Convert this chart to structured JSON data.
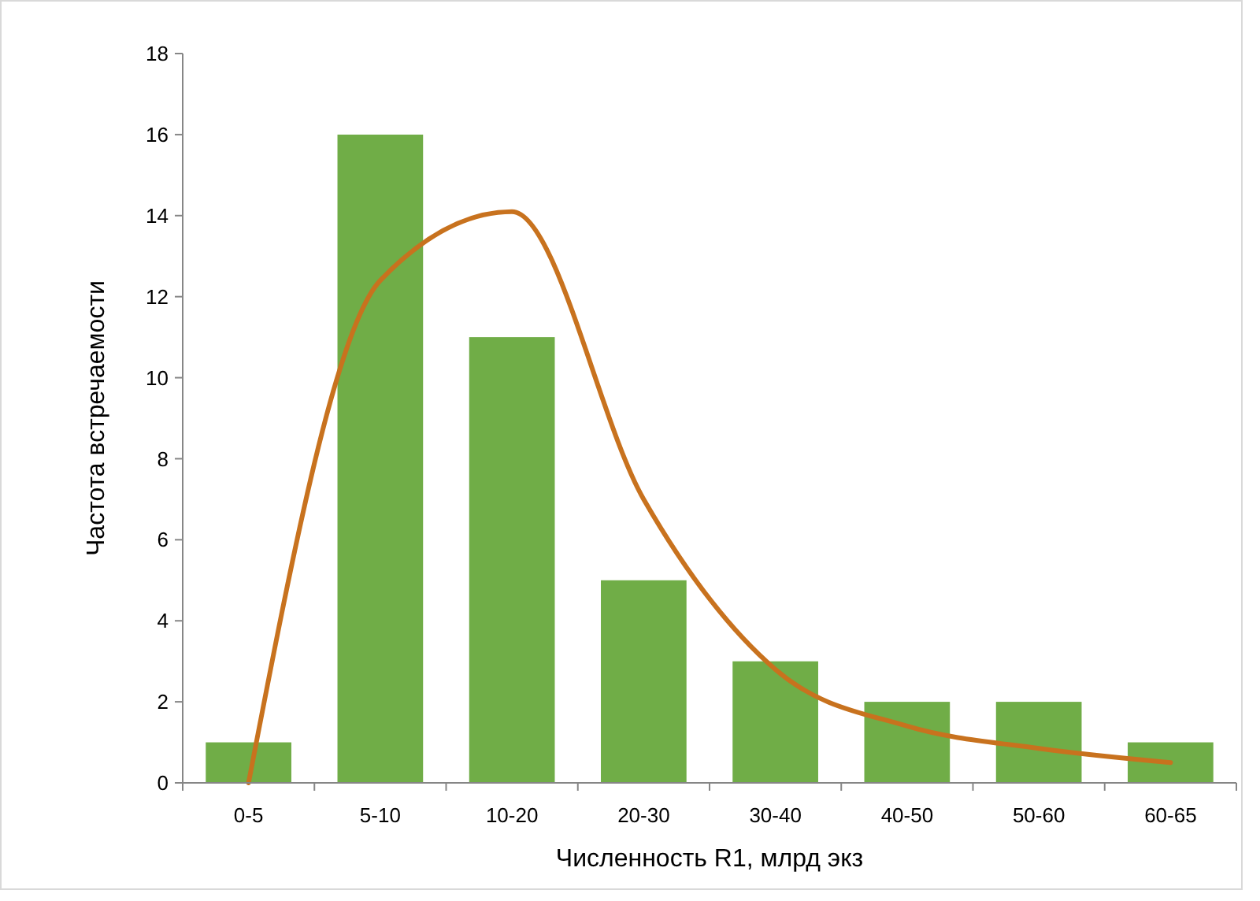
{
  "chart_data": {
    "type": "bar",
    "xlabel": "Численность R1, млрд экз",
    "ylabel": "Частота встречаемости",
    "categories": [
      "0-5",
      "5-10",
      "10-20",
      "20-30",
      "30-40",
      "40-50",
      "50-60",
      "60-65"
    ],
    "series": [
      {
        "color": "#70ad47",
        "values": [
          1,
          16,
          11,
          5,
          3,
          2,
          2,
          1
        ]
      },
      {
        "type": "line",
        "color": "#c8721e",
        "values": [
          0,
          12.4,
          14.1,
          7.0,
          2.8,
          1.4,
          0.85,
          0.5
        ]
      }
    ],
    "ylim": [
      0,
      18
    ],
    "yticks": [
      0,
      2,
      4,
      6,
      8,
      10,
      12,
      14,
      16,
      18
    ],
    "grid": false,
    "marker": "none",
    "line_style": "solid"
  }
}
